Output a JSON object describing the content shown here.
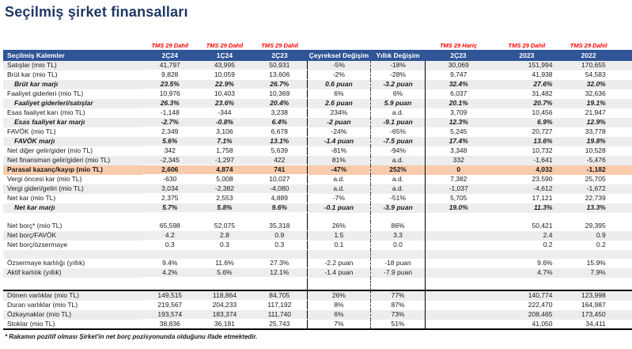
{
  "title": "Seçilmiş şirket finansalları",
  "footnote": "* Rakamın pozitif olması Şirket'in net borç pozisyonunda olduğunu ifade etmektedir.",
  "colors": {
    "title": "#1F3864",
    "header_bar": "#2F5597",
    "tms_label": "#FF0000",
    "cell_red": "#F8696B",
    "cell_yellow": "#FFEB84",
    "cell_green": "#63BE7B",
    "highlight_orange": "#F8CBAD",
    "row_stripe": "#EDEDED"
  },
  "table": {
    "tms_labels": [
      "",
      "TMS 29 Dahil",
      "TMS 29 Dahil",
      "TMS 29 Dahil",
      "",
      "",
      "TMS 29 Hariç",
      "TMS 29 Dahil",
      "TMS 29 Dahil"
    ],
    "headers": [
      "Seçilmiş Kalemler",
      "2Ç24",
      "1Ç24",
      "2Ç23",
      "Çeyreksel Değişim",
      "Yıllık Değişim",
      "2Ç23",
      "2023",
      "2022"
    ],
    "rows": [
      {
        "label": "Satışlar (mio TL)",
        "shade": "gray",
        "cells": [
          "41,797",
          "43,995",
          "50,931",
          "-5%",
          "-18%",
          "30,069",
          "151,994",
          "170,655"
        ],
        "fills": [
          "r",
          "y",
          "g",
          "",
          "",
          "",
          "",
          ""
        ]
      },
      {
        "label": "Brüt kar (mio TL)",
        "shade": "white",
        "cells": [
          "9,828",
          "10,059",
          "13,606",
          "-2%",
          "-28%",
          "9,747",
          "41,938",
          "54,583"
        ],
        "fills": [
          "r",
          "y",
          "g",
          "",
          "",
          "",
          "",
          ""
        ]
      },
      {
        "label": "Brüt kar marjı",
        "shade": "gray",
        "style": "margin",
        "cells": [
          "23.5%",
          "22.9%",
          "26.7%",
          "0.6 puan",
          "-3.2 puan",
          "32.4%",
          "27.6%",
          "32.0%"
        ],
        "fills": [
          "y",
          "r",
          "g",
          "",
          "",
          "",
          "",
          ""
        ]
      },
      {
        "label": "Faaliyet giderleri (mio TL)",
        "shade": "white",
        "cells": [
          "10,976",
          "10,403",
          "10,369",
          "6%",
          "6%",
          "6,037",
          "31,482",
          "32,636"
        ],
        "fills": [
          "r",
          "y",
          "g",
          "",
          "",
          "",
          "",
          ""
        ]
      },
      {
        "label": "Faaliyet giderleri/satışlar",
        "shade": "gray",
        "style": "margin",
        "cells": [
          "26.3%",
          "23.6%",
          "20.4%",
          "2.6 puan",
          "5.9 puan",
          "20.1%",
          "20.7%",
          "19.1%"
        ],
        "fills": [
          "r",
          "y",
          "g",
          "",
          "",
          "",
          "",
          ""
        ]
      },
      {
        "label": "Esas faaliyet karı (mio TL)",
        "shade": "white",
        "cells": [
          "-1,148",
          "-344",
          "3,238",
          "234%",
          "a.d.",
          "3,709",
          "10,456",
          "21,947"
        ],
        "fills": [
          "r",
          "y",
          "g",
          "",
          "",
          "",
          "",
          ""
        ]
      },
      {
        "label": "Esas faaliyet kar marjı",
        "shade": "gray",
        "style": "margin",
        "cells": [
          "-2.7%",
          "-0.8%",
          "6.4%",
          "-2 puan",
          "-9.1 puan",
          "12.3%",
          "6.9%",
          "12.9%"
        ],
        "fills": [
          "r",
          "y",
          "g",
          "",
          "",
          "",
          "",
          ""
        ]
      },
      {
        "label": "FAVÖK (mio TL)",
        "shade": "white",
        "cells": [
          "2,349",
          "3,106",
          "6,678",
          "-24%",
          "-65%",
          "5,245",
          "20,727",
          "33,778"
        ],
        "fills": [
          "r",
          "y",
          "g",
          "",
          "",
          "",
          "",
          ""
        ]
      },
      {
        "label": "FAVÖK marjı",
        "shade": "gray",
        "style": "margin",
        "cells": [
          "5.6%",
          "7.1%",
          "13.1%",
          "-1.4 puan",
          "-7.5 puan",
          "17.4%",
          "13.6%",
          "19.8%"
        ],
        "fills": [
          "r",
          "y",
          "g",
          "",
          "",
          "",
          "",
          ""
        ]
      },
      {
        "label": "Net diğer gelir/gider (mio TL)",
        "shade": "white",
        "cells": [
          "342",
          "1,758",
          "5,639",
          "-81%",
          "-94%",
          "3,348",
          "10,732",
          "10,528"
        ],
        "fills": [
          "r",
          "y",
          "g",
          "",
          "",
          "",
          "",
          ""
        ]
      },
      {
        "label": "Net finansman gelir/gideri (mio TL)",
        "shade": "gray",
        "cells": [
          "-2,345",
          "-1,297",
          "422",
          "81%",
          "a.d.",
          "332",
          "-1,641",
          "-5,476"
        ],
        "fills": [
          "r",
          "y",
          "g",
          "",
          "",
          "",
          "",
          ""
        ]
      },
      {
        "label": "Parasal kazanç/kayıp (mio TL)",
        "shade": "orange",
        "style": "bold",
        "cells": [
          "2,606",
          "4,874",
          "741",
          "-47%",
          "252%",
          "0",
          "4,032",
          "-1,182"
        ],
        "fills": [
          "y",
          "g",
          "r",
          "o",
          "o",
          "o",
          "o",
          "o"
        ]
      },
      {
        "label": "Vergi öncesi kar (mio TL)",
        "shade": "white",
        "cells": [
          "-630",
          "5,008",
          "10,027",
          "a.d.",
          "a.d.",
          "7,382",
          "23,590",
          "25,705"
        ],
        "fills": [
          "r",
          "y",
          "g",
          "",
          "",
          "",
          "",
          ""
        ]
      },
      {
        "label": "Vergi gideri/geliri (mio TL)",
        "shade": "gray",
        "cells": [
          "3,034",
          "-2,382",
          "-4,080",
          "a.d.",
          "a.d.",
          "-1,037",
          "-4,612",
          "-1,672"
        ],
        "fills": [
          "g",
          "y",
          "r",
          "",
          "",
          "",
          "",
          ""
        ]
      },
      {
        "label": "Net kar (mio TL)",
        "shade": "white",
        "cells": [
          "2,375",
          "2,553",
          "4,889",
          "-7%",
          "-51%",
          "5,705",
          "17,121",
          "22,739"
        ],
        "fills": [
          "r",
          "y",
          "g",
          "",
          "",
          "",
          "",
          ""
        ]
      },
      {
        "label": "Net kar marjı",
        "shade": "gray",
        "style": "margin",
        "cells": [
          "5.7%",
          "5.8%",
          "9.6%",
          "-0.1 puan",
          "-3.9 puan",
          "19.0%",
          "11.3%",
          "13.3%"
        ],
        "fills": [
          "r",
          "y",
          "g",
          "",
          "",
          "",
          "",
          ""
        ]
      },
      {
        "type": "spacer",
        "shade": "white"
      },
      {
        "label": "Net borç* (mio TL)",
        "shade": "white",
        "cells": [
          "65,598",
          "52,075",
          "35,318",
          "26%",
          "86%",
          "",
          "50,421",
          "29,395"
        ],
        "fills": [
          "r",
          "y",
          "g",
          "",
          "",
          "",
          "",
          ""
        ]
      },
      {
        "label": "Net borç/FAVÖK",
        "shade": "gray",
        "cells": [
          "4.2",
          "2.8",
          "0.9",
          "1.5",
          "3.3",
          "",
          "2.4",
          "0.9"
        ],
        "fills": [
          "r",
          "y",
          "g",
          "",
          "",
          "",
          "",
          ""
        ]
      },
      {
        "label": "Net borç/özsermaye",
        "shade": "white",
        "cells": [
          "0.3",
          "0.3",
          "0.3",
          "0.1",
          "0.0",
          "",
          "0.2",
          "0.2"
        ],
        "fills": [
          "r",
          "g",
          "y",
          "",
          "",
          "",
          "",
          ""
        ]
      },
      {
        "type": "spacer",
        "shade": "gray"
      },
      {
        "label": "Özsermaye karlılığı (yıllık)",
        "shade": "white",
        "cells": [
          "9.4%",
          "11.6%",
          "27.3%",
          "-2.2 puan",
          "-18 puan",
          "",
          "9.6%",
          "15.9%"
        ],
        "fills": [
          "r",
          "y",
          "g",
          "",
          "",
          "",
          "",
          ""
        ]
      },
      {
        "label": "Aktif karlılık (yıllık)",
        "shade": "gray",
        "cells": [
          "4.2%",
          "5.6%",
          "12.1%",
          "-1.4 puan",
          "-7.9 puan",
          "",
          "4.7%",
          "7.9%"
        ],
        "fills": [
          "r",
          "y",
          "g",
          "",
          "",
          "",
          "",
          ""
        ]
      },
      {
        "type": "spacer-tall",
        "shade": "white"
      },
      {
        "label": "Dönen varlıklar (mio TL)",
        "shade": "gray",
        "border": "top",
        "cells": [
          "149,515",
          "118,864",
          "84,705",
          "26%",
          "77%",
          "",
          "140,774",
          "123,998"
        ],
        "fills": [
          "g",
          "y",
          "r",
          "",
          "",
          "",
          "",
          ""
        ]
      },
      {
        "label": "Duran varlıklar (mio TL)",
        "shade": "white",
        "cells": [
          "219,567",
          "204,233",
          "117,192",
          "8%",
          "87%",
          "",
          "222,470",
          "164,987"
        ],
        "fills": [
          "g",
          "y",
          "r",
          "",
          "",
          "",
          "",
          ""
        ]
      },
      {
        "label": "Özkaynaklar (mio TL)",
        "shade": "gray",
        "cells": [
          "193,574",
          "183,374",
          "111,740",
          "6%",
          "73%",
          "",
          "208,465",
          "173,450"
        ],
        "fills": [
          "g",
          "y",
          "r",
          "",
          "",
          "",
          "",
          ""
        ]
      },
      {
        "label": "Stoklar (mio TL)",
        "shade": "white",
        "border": "bottom",
        "cells": [
          "38,836",
          "36,181",
          "25,743",
          "7%",
          "51%",
          "",
          "41,050",
          "34,411"
        ],
        "fills": [
          "g",
          "y",
          "r",
          "",
          "",
          "",
          "",
          ""
        ]
      }
    ]
  }
}
